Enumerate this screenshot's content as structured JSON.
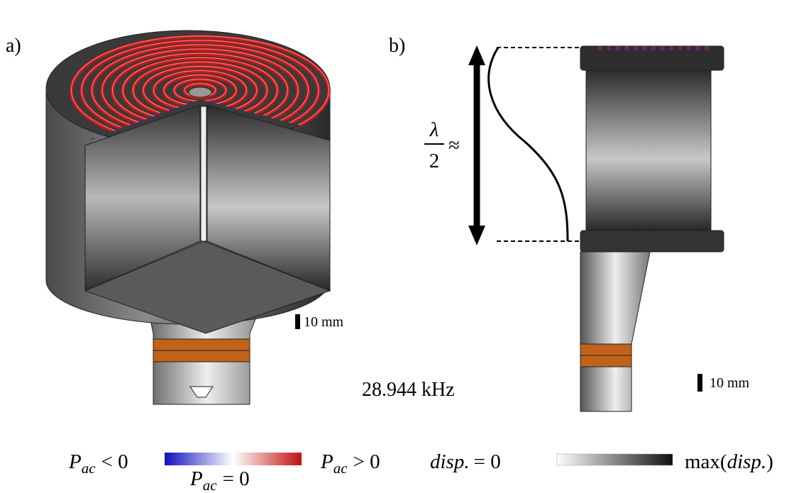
{
  "panels": {
    "a": {
      "label": "a)",
      "scale_bar": "10 mm"
    },
    "b": {
      "label": "b)",
      "scale_bar": "10 mm",
      "wavelength": {
        "numerator": "λ",
        "denominator": "2",
        "relation": "≈"
      }
    }
  },
  "frequency": "28.944 kHz",
  "legend": {
    "pressure": {
      "negative": {
        "symbol": "P",
        "subscript": "ac",
        "relation": "< 0"
      },
      "zero": {
        "symbol": "P",
        "subscript": "ac",
        "relation": "= 0"
      },
      "positive": {
        "symbol": "P",
        "subscript": "ac",
        "relation": "> 0"
      }
    },
    "displacement": {
      "min": {
        "symbol": "disp.",
        "relation": "= 0"
      },
      "max": {
        "prefix": "max(",
        "symbol": "disp.",
        "suffix": ")"
      }
    }
  }
}
